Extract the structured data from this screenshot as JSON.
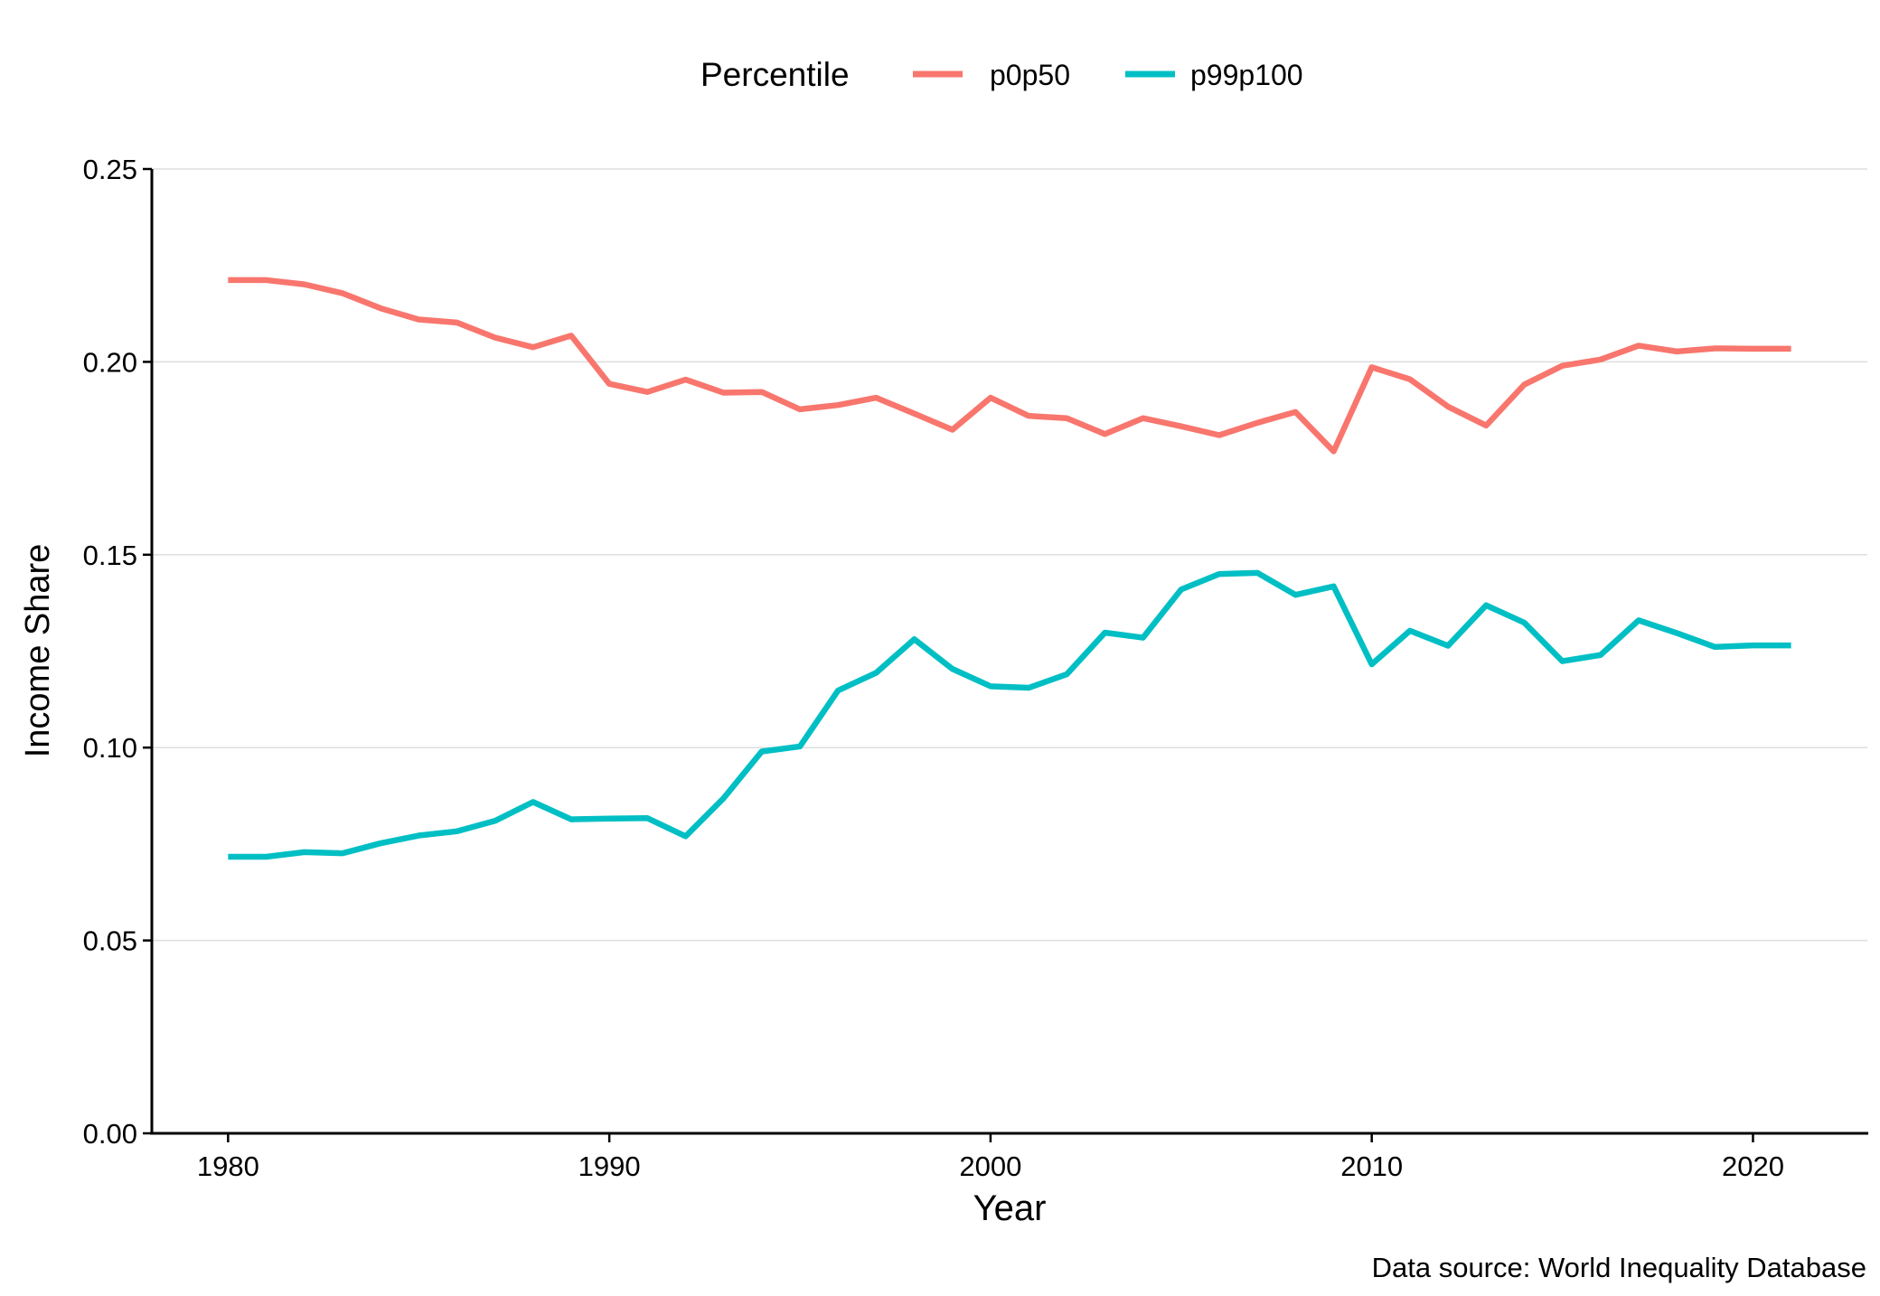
{
  "chart_data": {
    "type": "line",
    "title": "",
    "xlabel": "Year",
    "ylabel": "Income Share",
    "caption": "Data source: World Inequality Database",
    "xlim": [
      1978,
      2023
    ],
    "ylim": [
      0,
      0.25
    ],
    "x_ticks": [
      1980,
      1990,
      2000,
      2010,
      2020
    ],
    "y_ticks": [
      0.0,
      0.05,
      0.1,
      0.15,
      0.2,
      0.25
    ],
    "y_tick_labels": [
      "0.00",
      "0.05",
      "0.10",
      "0.15",
      "0.20",
      "0.25"
    ],
    "grid": "horizontal major",
    "legend": {
      "title": "Percentile",
      "position": "top"
    },
    "x": [
      1980,
      1981,
      1982,
      1983,
      1984,
      1985,
      1986,
      1987,
      1988,
      1989,
      1990,
      1991,
      1992,
      1993,
      1994,
      1995,
      1996,
      1997,
      1998,
      1999,
      2000,
      2001,
      2002,
      2003,
      2004,
      2005,
      2006,
      2007,
      2008,
      2009,
      2010,
      2011,
      2012,
      2013,
      2014,
      2015,
      2016,
      2017,
      2018,
      2019,
      2020,
      2021
    ],
    "series": [
      {
        "name": "p0p50",
        "color": "#F8766D",
        "values": [
          0.2212,
          0.2212,
          0.2201,
          0.2178,
          0.2139,
          0.211,
          0.2102,
          0.2063,
          0.2038,
          0.2068,
          0.1943,
          0.1922,
          0.1954,
          0.192,
          0.1922,
          0.1877,
          0.1888,
          0.1907,
          0.1866,
          0.1824,
          0.1907,
          0.186,
          0.1854,
          0.1813,
          0.1854,
          0.1833,
          0.181,
          0.1842,
          0.187,
          0.1768,
          0.1986,
          0.1955,
          0.1884,
          0.1835,
          0.1941,
          0.199,
          0.2006,
          0.2042,
          0.2027,
          0.2035,
          0.2034,
          0.2034
        ]
      },
      {
        "name": "p99p100",
        "color": "#00BFC4",
        "values": [
          0.0717,
          0.0717,
          0.0729,
          0.0726,
          0.0752,
          0.0772,
          0.0783,
          0.081,
          0.0859,
          0.0814,
          0.0816,
          0.0817,
          0.077,
          0.0869,
          0.099,
          0.1003,
          0.1148,
          0.1194,
          0.1281,
          0.1204,
          0.1159,
          0.1155,
          0.119,
          0.1298,
          0.1285,
          0.141,
          0.145,
          0.1453,
          0.1396,
          0.1418,
          0.1216,
          0.1303,
          0.1264,
          0.1369,
          0.1324,
          0.1224,
          0.124,
          0.133,
          0.1297,
          0.1261,
          0.1265,
          0.1265
        ]
      }
    ]
  }
}
